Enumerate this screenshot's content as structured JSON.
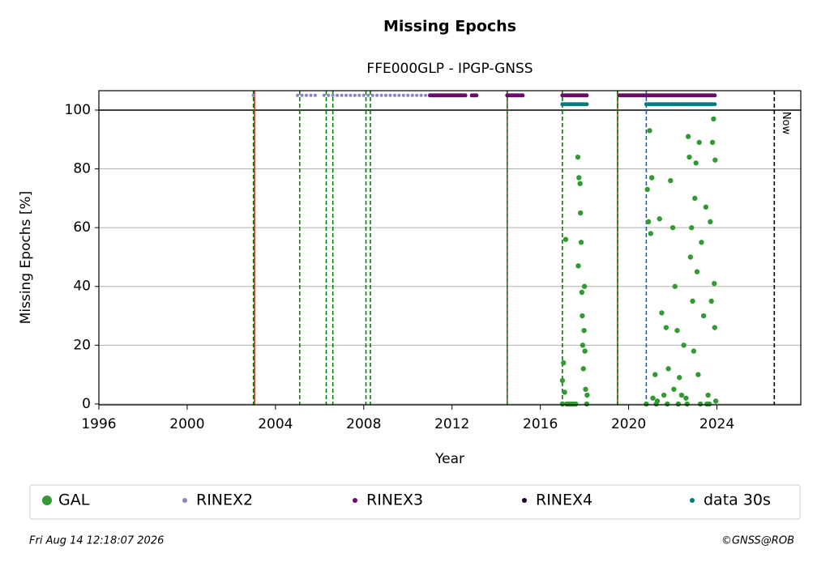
{
  "chart_data": {
    "type": "scatter",
    "title": "Missing Epochs",
    "subtitle": "FFE000GLP - IPGP-GNSS",
    "x_label": "Year",
    "y_label": "Missing Epochs [%]",
    "xlim": [
      1996,
      2027.8
    ],
    "ylim": [
      -0.3,
      106.6
    ],
    "xticks": [
      1996,
      2000,
      2004,
      2008,
      2012,
      2016,
      2020,
      2024
    ],
    "yticks": [
      0,
      20,
      40,
      60,
      80,
      100
    ],
    "grid": true,
    "hline": {
      "y": 100,
      "color": "#000000"
    },
    "vlines": [
      {
        "x": 2003.05,
        "color": "#d62728",
        "style": "solid"
      },
      {
        "x": 2014.5,
        "color": "#d62728",
        "style": "solid"
      },
      {
        "x": 2019.5,
        "color": "#d62728",
        "style": "solid"
      },
      {
        "x": 2003.0,
        "color": "#008000",
        "style": "dashed"
      },
      {
        "x": 2005.1,
        "color": "#008000",
        "style": "dashed"
      },
      {
        "x": 2006.3,
        "color": "#008000",
        "style": "dashed"
      },
      {
        "x": 2006.6,
        "color": "#008000",
        "style": "dashed"
      },
      {
        "x": 2008.1,
        "color": "#008000",
        "style": "dashed"
      },
      {
        "x": 2008.3,
        "color": "#008000",
        "style": "dashed"
      },
      {
        "x": 2014.5,
        "color": "#008000",
        "style": "dashed"
      },
      {
        "x": 2017.0,
        "color": "#008000",
        "style": "dashed"
      },
      {
        "x": 2019.5,
        "color": "#008000",
        "style": "dashed"
      },
      {
        "x": 2020.8,
        "color": "#1f5fa8",
        "style": "dashed"
      },
      {
        "x": 2026.6,
        "color": "#000000",
        "style": "dashed",
        "label": "Now"
      }
    ],
    "series": [
      {
        "name": "GAL",
        "color": "#339933",
        "radius": 3.2,
        "x": [
          2017.0,
          2017.0,
          2017.05,
          2017.1,
          2017.15,
          2017.2,
          2017.3,
          2017.4,
          2017.5,
          2017.6,
          2017.7,
          2017.72,
          2017.75,
          2017.8,
          2017.82,
          2017.85,
          2017.88,
          2017.9,
          2017.92,
          2017.95,
          2017.98,
          2018.0,
          2018.02,
          2018.05,
          2018.1,
          2018.12,
          2020.8,
          2020.85,
          2020.9,
          2020.95,
          2021.0,
          2021.05,
          2021.1,
          2021.2,
          2021.3,
          2021.4,
          2021.5,
          2021.6,
          2021.7,
          2021.8,
          2021.9,
          2022.0,
          2022.05,
          2022.1,
          2022.2,
          2022.3,
          2022.4,
          2022.5,
          2022.6,
          2022.7,
          2022.75,
          2022.8,
          2022.85,
          2022.9,
          2022.95,
          2023.0,
          2023.05,
          2023.1,
          2023.15,
          2023.2,
          2023.3,
          2023.4,
          2023.5,
          2023.6,
          2023.7,
          2023.75,
          2023.8,
          2023.85,
          2023.88,
          2023.9,
          2023.92,
          2023.95,
          2021.25,
          2021.75,
          2022.25,
          2022.65,
          2023.25,
          2023.55,
          2023.65
        ],
        "values": [
          0,
          8,
          14,
          4,
          56,
          0,
          0,
          0,
          0,
          0,
          84,
          47,
          77,
          75,
          65,
          55,
          38,
          30,
          20,
          12,
          25,
          40,
          18,
          5,
          0,
          3,
          0,
          73,
          62,
          93,
          58,
          77,
          2,
          10,
          1,
          63,
          31,
          3,
          26,
          12,
          76,
          60,
          5,
          40,
          25,
          9,
          3,
          20,
          2,
          91,
          84,
          50,
          60,
          35,
          18,
          70,
          82,
          45,
          10,
          89,
          55,
          30,
          67,
          3,
          62,
          35,
          89,
          97,
          41,
          26,
          83,
          1,
          0,
          0,
          0,
          0,
          0,
          0,
          0
        ]
      },
      {
        "name": "RINEX2",
        "color": "#8884c4",
        "radius": 2,
        "x": [
          2003.0,
          2005.0,
          2005.2,
          2005.4,
          2005.6,
          2005.8,
          2006.2,
          2006.4,
          2006.6,
          2006.8,
          2007.0,
          2007.2,
          2007.4,
          2007.6,
          2007.8,
          2008.0,
          2008.2,
          2008.4,
          2008.6,
          2008.8,
          2009.0,
          2009.2,
          2009.4,
          2009.6,
          2009.8,
          2010.0,
          2010.2,
          2010.4,
          2010.6,
          2010.8,
          2011.0
        ],
        "values": [
          105,
          105,
          105,
          105,
          105,
          105,
          105,
          105,
          105,
          105,
          105,
          105,
          105,
          105,
          105,
          105,
          105,
          105,
          105,
          105,
          105,
          105,
          105,
          105,
          105,
          105,
          105,
          105,
          105,
          105,
          105
        ]
      },
      {
        "name": "RINEX3",
        "color": "#6b0a6b",
        "radius": 2.5,
        "x": [
          2011.0,
          2011.1,
          2011.2,
          2011.3,
          2011.4,
          2011.5,
          2011.6,
          2011.7,
          2011.8,
          2011.9,
          2012.0,
          2012.1,
          2012.2,
          2012.3,
          2012.4,
          2012.5,
          2012.6,
          2012.9,
          2013.0,
          2013.1,
          2014.5,
          2014.6,
          2014.7,
          2014.8,
          2014.9,
          2015.0,
          2015.1,
          2015.2,
          2017.0,
          2017.1,
          2017.2,
          2017.3,
          2017.4,
          2017.5,
          2017.6,
          2017.7,
          2017.8,
          2017.9,
          2018.0,
          2018.1,
          2019.6,
          2019.7,
          2019.8,
          2019.9,
          2020.0,
          2020.1,
          2020.2,
          2020.3,
          2020.4,
          2020.5,
          2020.6,
          2020.7,
          2020.8,
          2020.9,
          2021.0,
          2021.1,
          2021.2,
          2021.3,
          2021.4,
          2021.5,
          2021.6,
          2021.7,
          2021.8,
          2021.9,
          2022.0,
          2022.1,
          2022.2,
          2022.3,
          2022.4,
          2022.5,
          2022.6,
          2022.7,
          2022.8,
          2022.9,
          2023.0,
          2023.1,
          2023.2,
          2023.3,
          2023.4,
          2023.5,
          2023.6,
          2023.7,
          2023.8,
          2023.9
        ],
        "values": [
          105,
          105,
          105,
          105,
          105,
          105,
          105,
          105,
          105,
          105,
          105,
          105,
          105,
          105,
          105,
          105,
          105,
          105,
          105,
          105,
          105,
          105,
          105,
          105,
          105,
          105,
          105,
          105,
          105,
          105,
          105,
          105,
          105,
          105,
          105,
          105,
          105,
          105,
          105,
          105,
          105,
          105,
          105,
          105,
          105,
          105,
          105,
          105,
          105,
          105,
          105,
          105,
          105,
          105,
          105,
          105,
          105,
          105,
          105,
          105,
          105,
          105,
          105,
          105,
          105,
          105,
          105,
          105,
          105,
          105,
          105,
          105,
          105,
          105,
          105,
          105,
          105,
          105,
          105,
          105,
          105,
          105,
          105,
          105
        ]
      },
      {
        "name": "RINEX4",
        "color": "#1a0020",
        "radius": 2,
        "x": [],
        "values": []
      },
      {
        "name": "data 30s",
        "color": "#007b7b",
        "radius": 2.5,
        "x": [
          2017.0,
          2017.1,
          2017.2,
          2017.3,
          2017.4,
          2017.5,
          2017.6,
          2017.7,
          2017.8,
          2017.9,
          2018.0,
          2018.1,
          2020.8,
          2020.9,
          2021.0,
          2021.1,
          2021.2,
          2021.3,
          2021.4,
          2021.5,
          2021.6,
          2021.7,
          2021.8,
          2021.9,
          2022.0,
          2022.1,
          2022.2,
          2022.3,
          2022.4,
          2022.5,
          2022.6,
          2022.7,
          2022.8,
          2022.9,
          2023.0,
          2023.1,
          2023.2,
          2023.3,
          2023.4,
          2023.5,
          2023.6,
          2023.7,
          2023.8,
          2023.9
        ],
        "values": [
          102,
          102,
          102,
          102,
          102,
          102,
          102,
          102,
          102,
          102,
          102,
          102,
          102,
          102,
          102,
          102,
          102,
          102,
          102,
          102,
          102,
          102,
          102,
          102,
          102,
          102,
          102,
          102,
          102,
          102,
          102,
          102,
          102,
          102,
          102,
          102,
          102,
          102,
          102,
          102,
          102,
          102,
          102,
          102
        ]
      }
    ],
    "footer_left": "Fri Aug 14 12:18:07 2026",
    "footer_right": "©GNSS@ROB"
  }
}
